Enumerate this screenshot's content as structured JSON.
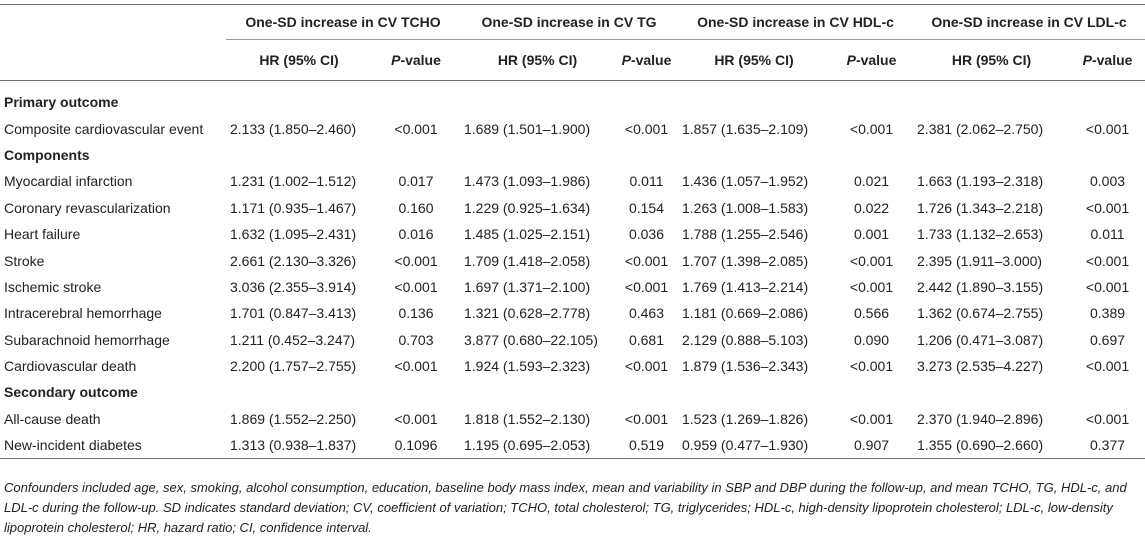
{
  "group_headers": [
    "One-SD increase in CV TCHO",
    "One-SD increase in CV TG",
    "One-SD increase in CV HDL-c",
    "One-SD increase in CV LDL-c"
  ],
  "sub_headers": {
    "hr": "HR (95% CI)",
    "p_italic": "P",
    "p_rest": "-value"
  },
  "rows": [
    {
      "type": "section",
      "label": "Primary outcome"
    },
    {
      "type": "data",
      "label": "Composite cardiovascular event",
      "cells": [
        "2.133 (1.850–2.460)",
        "<0.001",
        "1.689 (1.501–1.900)",
        "<0.001",
        "1.857 (1.635–2.109)",
        "<0.001",
        "2.381 (2.062–2.750)",
        "<0.001"
      ]
    },
    {
      "type": "section",
      "label": "Components"
    },
    {
      "type": "data",
      "label": "Myocardial infarction",
      "cells": [
        "1.231 (1.002–1.512)",
        "0.017",
        "1.473 (1.093–1.986)",
        "0.011",
        "1.436 (1.057–1.952)",
        "0.021",
        "1.663 (1.193–2.318)",
        "0.003"
      ]
    },
    {
      "type": "data",
      "label": "Coronary revascularization",
      "cells": [
        "1.171 (0.935–1.467)",
        "0.160",
        "1.229 (0.925–1.634)",
        "0.154",
        "1.263 (1.008–1.583)",
        "0.022",
        "1.726 (1.343–2.218)",
        "<0.001"
      ]
    },
    {
      "type": "data",
      "label": "Heart failure",
      "cells": [
        "1.632 (1.095–2.431)",
        "0.016",
        "1.485 (1.025–2.151)",
        "0.036",
        "1.788 (1.255–2.546)",
        "0.001",
        "1.733 (1.132–2.653)",
        "0.011"
      ]
    },
    {
      "type": "data",
      "label": "Stroke",
      "cells": [
        "2.661 (2.130–3.326)",
        "<0.001",
        "1.709 (1.418–2.058)",
        "<0.001",
        "1.707 (1.398–2.085)",
        "<0.001",
        "2.395 (1.911–3.000)",
        "<0.001"
      ]
    },
    {
      "type": "data",
      "label": "Ischemic stroke",
      "cells": [
        "3.036 (2.355–3.914)",
        "<0.001",
        "1.697 (1.371–2.100)",
        "<0.001",
        "1.769 (1.413–2.214)",
        "<0.001",
        "2.442 (1.890–3.155)",
        "<0.001"
      ]
    },
    {
      "type": "data",
      "label": "Intracerebral hemorrhage",
      "cells": [
        "1.701 (0.847–3.413)",
        "0.136",
        "1.321 (0.628–2.778)",
        "0.463",
        "1.181 (0.669–2.086)",
        "0.566",
        "1.362 (0.674–2.755)",
        "0.389"
      ]
    },
    {
      "type": "data",
      "label": "Subarachnoid hemorrhage",
      "cells": [
        "1.211 (0.452–3.247)",
        "0.703",
        "3.877 (0.680–22.105)",
        "0.681",
        "2.129 (0.888–5.103)",
        "0.090",
        "1.206 (0.471–3.087)",
        "0.697"
      ]
    },
    {
      "type": "data",
      "label": "Cardiovascular death",
      "cells": [
        "2.200 (1.757–2.755)",
        "<0.001",
        "1.924 (1.593–2.323)",
        "<0.001",
        "1.879 (1.536–2.343)",
        "<0.001",
        "3.273 (2.535–4.227)",
        "<0.001"
      ]
    },
    {
      "type": "section",
      "label": "Secondary outcome"
    },
    {
      "type": "data",
      "label": "All-cause death",
      "cells": [
        "1.869 (1.552–2.250)",
        "<0.001",
        "1.818 (1.552–2.130)",
        "<0.001",
        "1.523 (1.269–1.826)",
        "<0.001",
        "2.370 (1.940–2.896)",
        "<0.001"
      ]
    },
    {
      "type": "data",
      "label": "New-incident diabetes",
      "cells": [
        "1.313 (0.938–1.837)",
        "0.1096",
        "1.195 (0.695–2.053)",
        "0.519",
        "0.959 (0.477–1.930)",
        "0.907",
        "1.355 (0.690–2.660)",
        "0.377"
      ]
    }
  ],
  "footnote": "Confounders included age, sex, smoking, alcohol consumption, education, baseline body mass index, mean and variability in SBP and DBP during the follow-up, and mean TCHO, TG, HDL-c, and LDL-c during the follow-up. SD indicates standard deviation; CV, coefficient of variation; TCHO, total cholesterol; TG, triglycerides; HDL-c, high-density lipoprotein cholesterol; LDL-c, low-density lipoprotein cholesterol; HR, hazard ratio; CI, confidence interval."
}
